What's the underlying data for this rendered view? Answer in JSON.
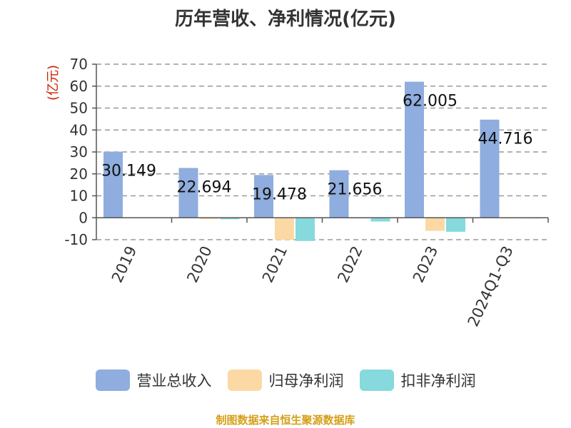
{
  "title": "历年营收、净利情况(亿元)",
  "source_note": "制图数据来自恒生聚源数据库",
  "chart_data": {
    "type": "bar",
    "title": "历年营收、净利情况(亿元)",
    "ylabel": "(亿元)",
    "xlabel": "",
    "ylim": [
      -10,
      70
    ],
    "yticks": [
      -10,
      0,
      10,
      20,
      30,
      40,
      50,
      60,
      70
    ],
    "grid": true,
    "legend_position": "bottom",
    "categories": [
      "2019",
      "2020",
      "2021",
      "2022",
      "2023",
      "2024Q1-Q3"
    ],
    "series": [
      {
        "name": "营业总收入",
        "color": "#8fadde",
        "values": [
          30.149,
          22.694,
          19.478,
          21.656,
          62.005,
          44.716
        ],
        "data_labels": [
          "30.149",
          "22.694",
          "19.478",
          "21.656",
          "62.005",
          "44.716"
        ]
      },
      {
        "name": "归母净利润",
        "color": "#fcd9a4",
        "values": [
          0.2,
          -0.6,
          -10.1,
          -0.1,
          -6.0,
          -0.1
        ]
      },
      {
        "name": "扣非净利润",
        "color": "#86d9dc",
        "values": [
          0.1,
          -0.7,
          -10.6,
          -1.7,
          -6.4,
          -0.3
        ]
      }
    ]
  }
}
